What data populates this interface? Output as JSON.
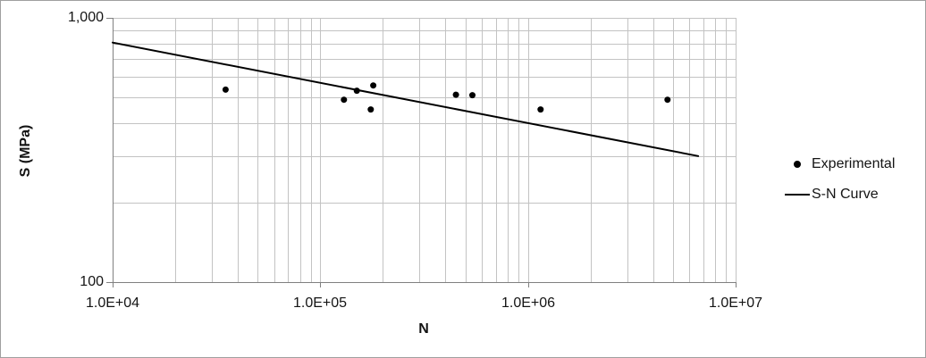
{
  "chart_data": {
    "type": "scatter",
    "title": "",
    "xlabel": "N",
    "ylabel": "S (MPa)",
    "x_scale": "log",
    "y_scale": "log",
    "xlim": [
      10000,
      10000000
    ],
    "ylim": [
      100,
      1000
    ],
    "x_tick_labels": [
      "1.0E+04",
      "1.0E+05",
      "1.0E+06",
      "1.0E+07"
    ],
    "y_tick_labels": [
      "100",
      "1,000"
    ],
    "grid": {
      "major": true,
      "minor": true,
      "gridline_color": "#c3c3c3",
      "axis_color": "#808080"
    },
    "series": [
      {
        "name": "Experimental",
        "kind": "scatter",
        "marker": "circle",
        "color": "#000000",
        "points": [
          [
            35000,
            535
          ],
          [
            130000,
            490
          ],
          [
            150000,
            530
          ],
          [
            180000,
            555
          ],
          [
            175000,
            450
          ],
          [
            450000,
            512
          ],
          [
            540000,
            510
          ],
          [
            1150000,
            450
          ],
          [
            4700000,
            490
          ]
        ]
      },
      {
        "name": "S-N Curve",
        "kind": "line",
        "color": "#000000",
        "points": [
          [
            10000,
            806
          ],
          [
            6600000,
            300
          ]
        ]
      }
    ],
    "legend": {
      "position": "right",
      "entries": [
        "Experimental",
        "S-N Curve"
      ]
    }
  },
  "colors": {
    "background": "#ffffff",
    "frame_border": "#9f9f9f",
    "text": "#141414"
  }
}
